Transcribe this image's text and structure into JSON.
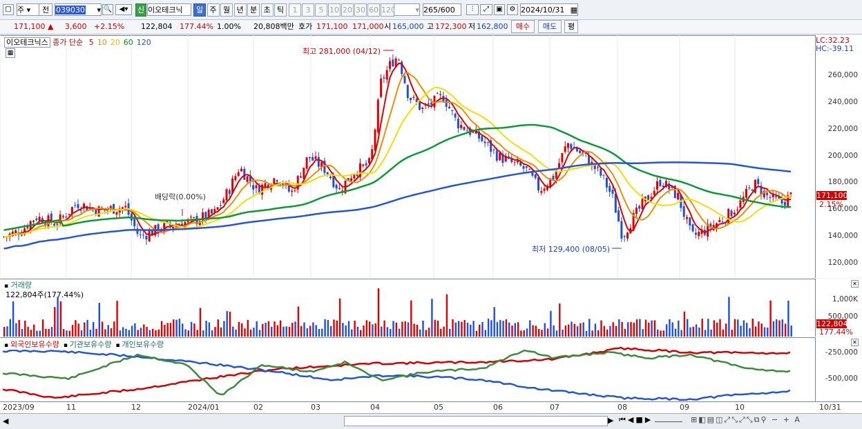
{
  "toolbar": {
    "market": "주",
    "prev_label": "전",
    "code": "039030",
    "badge": "신",
    "name": "이오테크닉",
    "periods": [
      "일",
      "주",
      "월",
      "년",
      "분",
      "초",
      "틱"
    ],
    "intervals": [
      "1",
      "3",
      "5",
      "10",
      "20",
      "30",
      "60",
      "120"
    ],
    "count": "265",
    "count_total": "/600",
    "date": "2024/10/31"
  },
  "quote": {
    "price": "171,100 ▲",
    "change": "3,600",
    "change_pct": "+2.15%",
    "volume": "122,804",
    "volume_ratio": "177.44%",
    "turnover": "1.00%",
    "amount": "20,808백만",
    "bid_label": "호가",
    "bid": "171,100",
    "ask": "171,000",
    "open_label": "시",
    "open": "165,000",
    "high_label": "고",
    "high": "172,300",
    "low_label": "저",
    "low": "162,800",
    "buy_label": "매수",
    "sell_label": "매도",
    "eval_label": "평"
  },
  "price_panel": {
    "legend_name": "이오테크닉스",
    "legend_series": "종가 단순",
    "ma": [
      {
        "label": "5",
        "color": "#e00000"
      },
      {
        "label": "10",
        "color": "#f08c00"
      },
      {
        "label": "20",
        "color": "#f0e000"
      },
      {
        "label": "60",
        "color": "#008f2a"
      },
      {
        "label": "120",
        "color": "#1f4fd8"
      }
    ],
    "lc": "LC:32.23",
    "hc": "HC:-39.11",
    "y_ticks": [
      "260,000",
      "240,000",
      "220,000",
      "200,000",
      "180,000",
      "160,000",
      "140,000",
      "120,000"
    ],
    "last_price_tag": "171,100",
    "last_pct_tag": "2.15%",
    "high_note": "최고 281,000 (04/12)",
    "low_note": "최저 129,400 (08/05)",
    "dividend_note": "배당락(0.00%)"
  },
  "volume_panel": {
    "title": "거래량",
    "subtitle": "122,804주(177.44%)",
    "y_ticks": [
      "1,000K",
      "500,000"
    ],
    "last_tag": "122,804",
    "last_pct": "177.44%"
  },
  "holdings_panel": {
    "series": [
      {
        "label": "외국인보유수량",
        "color": "#d40000"
      },
      {
        "label": "기관보유수량",
        "color": "#1f4fd8"
      },
      {
        "label": "개인보유수량",
        "color": "#3c8a3c"
      }
    ],
    "y_ticks": [
      "-250,000",
      "-500,000"
    ]
  },
  "dates": [
    "2023/09",
    "11",
    "12",
    "2024/01",
    "02",
    "03",
    "04",
    "05",
    "06",
    "07",
    "08",
    "09",
    "10"
  ],
  "last_date": "10/31",
  "colors": {
    "up": "#e00000",
    "down": "#1f4fd8",
    "accent": "#3d6fd0"
  }
}
